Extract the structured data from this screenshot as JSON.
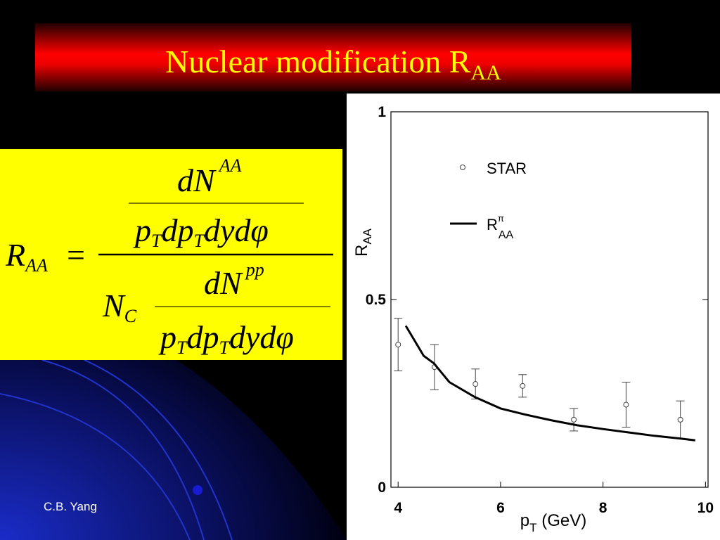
{
  "slide": {
    "title": {
      "text": "Nuclear modification R",
      "sub": "AA"
    },
    "author": "C.B. Yang",
    "formula": {
      "lhs": {
        "text": "R",
        "sub": "AA"
      },
      "equals": "=",
      "top": {
        "numerator": {
          "text": "dN",
          "sup": "AA"
        },
        "denominator": [
          {
            "text": "p",
            "sub": "T"
          },
          {
            "text": "dp",
            "sub": "T"
          },
          {
            "text": "dydφ"
          }
        ]
      },
      "bottom": {
        "factor": {
          "text": "N",
          "sub": "C"
        },
        "numerator": {
          "text": "dN",
          "sup": "pp"
        },
        "denominator": [
          {
            "text": "p",
            "sub": "T"
          },
          {
            "text": "dp",
            "sub": "T"
          },
          {
            "text": "dydφ"
          }
        ]
      }
    }
  },
  "chart_data": {
    "type": "scatter",
    "x_label": {
      "text": "p",
      "sub": "T",
      "suffix": " (GeV)"
    },
    "y_label": {
      "text": "R",
      "sub": "AA"
    },
    "xlim": [
      3.86,
      10.05
    ],
    "xticks": [
      4,
      6,
      8,
      10
    ],
    "ylim": [
      0,
      1
    ],
    "yticks": [
      0,
      0.5,
      1
    ],
    "series": [
      {
        "name": "STAR",
        "type": "scatter",
        "color": "#444444",
        "x": [
          4.0,
          4.71,
          5.51,
          6.43,
          7.43,
          8.45,
          9.51
        ],
        "values": [
          0.38,
          0.32,
          0.275,
          0.27,
          0.18,
          0.22,
          0.18
        ],
        "errors": [
          0.07,
          0.06,
          0.04,
          0.03,
          0.03,
          0.06,
          0.05
        ]
      },
      {
        "name": "R",
        "name_sup": "π",
        "name_sub": "AA",
        "type": "line",
        "color": "#000000",
        "x": [
          4.15,
          4.5,
          4.7,
          5.0,
          5.5,
          6.0,
          6.5,
          7.0,
          7.5,
          8.0,
          8.5,
          9.0,
          9.5,
          9.8
        ],
        "values": [
          0.43,
          0.35,
          0.33,
          0.28,
          0.24,
          0.21,
          0.193,
          0.178,
          0.165,
          0.155,
          0.146,
          0.137,
          0.13,
          0.125
        ]
      }
    ]
  }
}
